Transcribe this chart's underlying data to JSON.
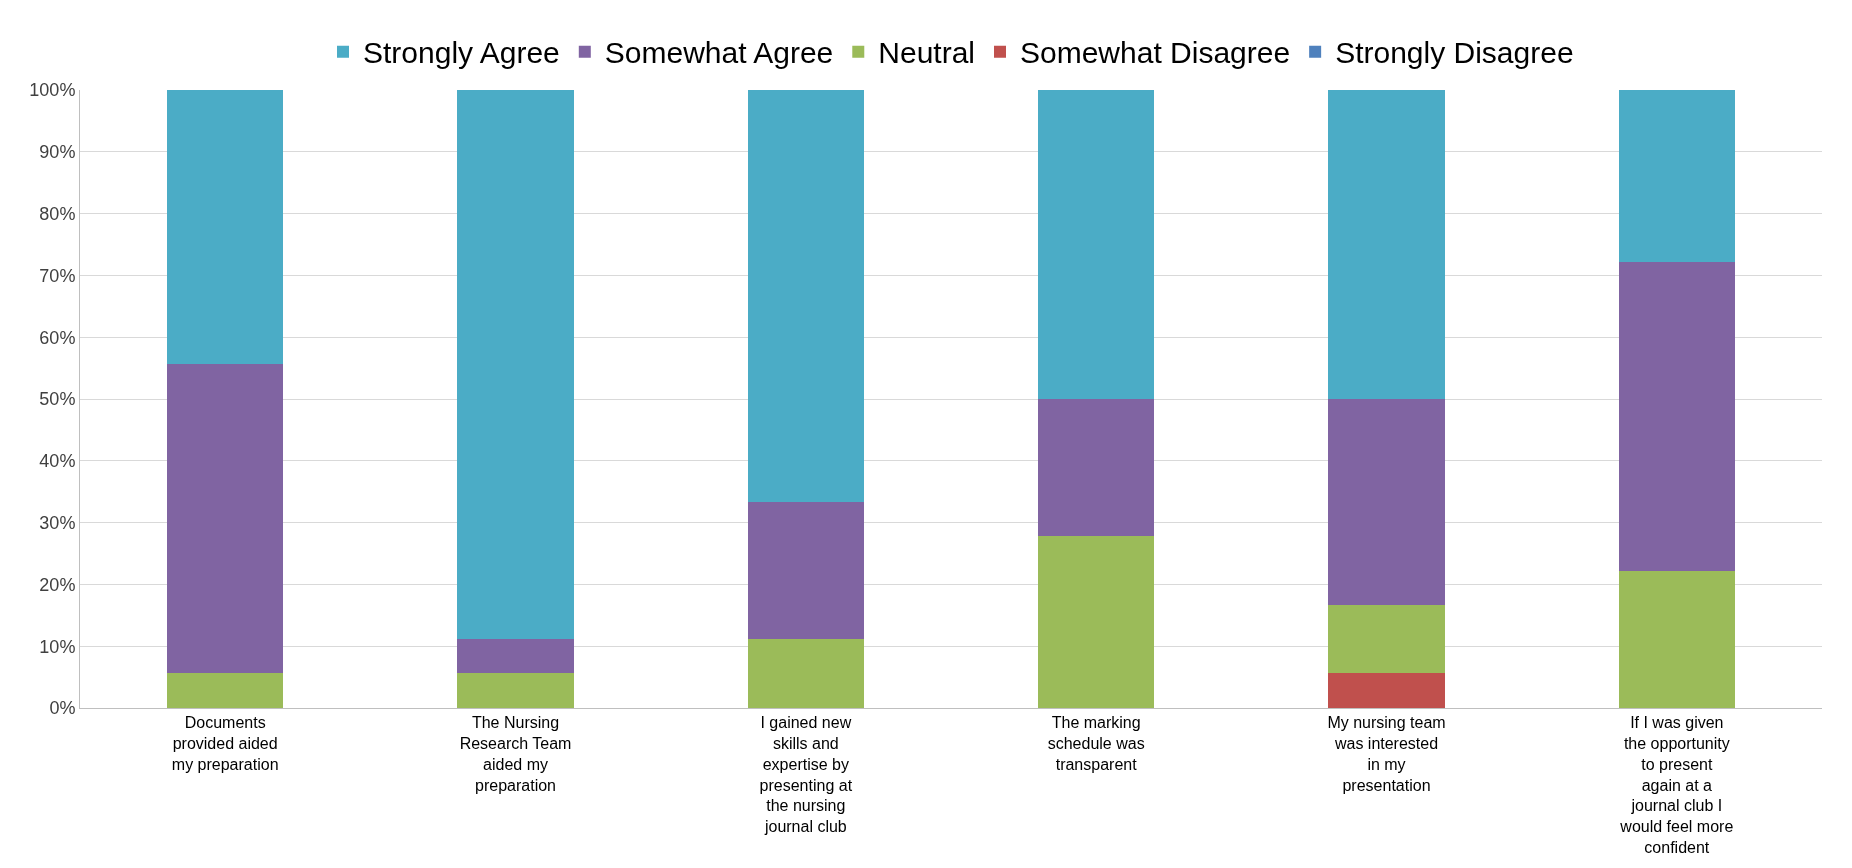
{
  "chart_data": {
    "type": "bar",
    "stacked": true,
    "legend": "top",
    "grid": "y",
    "categories": [
      "Documents provided aided my preparation",
      "The Nursing Research Team aided my preparation",
      "I gained new skills and expertise by presenting at the nursing journal club",
      "The marking schedule was transparent",
      "My nursing team was interested in my presentation",
      "If I was given the opportunity to present again at a journal club I would feel more confident"
    ],
    "series": [
      {
        "name": "Strongly Disagree",
        "color": "#4f81bd",
        "values": [
          0,
          0,
          0,
          0,
          0,
          0
        ]
      },
      {
        "name": "Somewhat Disagree",
        "color": "#c0504d",
        "values": [
          0,
          0,
          0,
          0,
          5.6,
          0
        ]
      },
      {
        "name": "Neutral",
        "color": "#9bbb59",
        "values": [
          5.6,
          5.6,
          11.1,
          27.8,
          11.1,
          22.2
        ]
      },
      {
        "name": "Somewhat Agree",
        "color": "#8064a2",
        "values": [
          50,
          5.6,
          22.2,
          22.2,
          33.3,
          50
        ]
      },
      {
        "name": "Strongly Agree",
        "color": "#4bacc6",
        "values": [
          44.4,
          88.9,
          66.7,
          50,
          50,
          27.8
        ]
      }
    ],
    "ylim": [
      0,
      100
    ],
    "yticks": [
      {
        "value": 0,
        "label": "0%"
      },
      {
        "value": 10,
        "label": "10%"
      },
      {
        "value": 20,
        "label": "20%"
      },
      {
        "value": 30,
        "label": "30%"
      },
      {
        "value": 40,
        "label": "40%"
      },
      {
        "value": 50,
        "label": "50%"
      },
      {
        "value": 60,
        "label": "60%"
      },
      {
        "value": 70,
        "label": "70%"
      },
      {
        "value": 80,
        "label": "80%"
      },
      {
        "value": 90,
        "label": "90%"
      },
      {
        "value": 100,
        "label": "100%"
      }
    ]
  }
}
